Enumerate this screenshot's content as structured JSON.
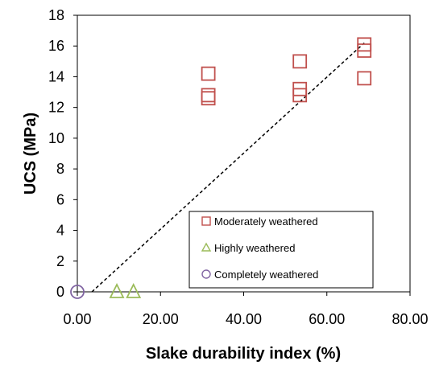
{
  "chart_data": {
    "type": "scatter",
    "xlabel": "Slake durability index (%)",
    "ylabel": "UCS (MPa)",
    "xlim": [
      0,
      80
    ],
    "ylim": [
      0,
      18
    ],
    "x_ticks": [
      "0.00",
      "20.00",
      "40.00",
      "60.00",
      "80.00"
    ],
    "y_ticks": [
      "0",
      "2",
      "4",
      "6",
      "8",
      "10",
      "12",
      "14",
      "16",
      "18"
    ],
    "grid": false,
    "legend_position": "bottom-right",
    "series": [
      {
        "name": "Moderately weathered",
        "marker": "square",
        "color": "#c0504d",
        "points": [
          [
            31.5,
            14.2
          ],
          [
            31.5,
            12.8
          ],
          [
            31.5,
            12.6
          ],
          [
            53.5,
            15.0
          ],
          [
            53.5,
            13.2
          ],
          [
            53.5,
            12.8
          ],
          [
            69.0,
            16.1
          ],
          [
            69.0,
            15.7
          ],
          [
            69.0,
            13.9
          ]
        ]
      },
      {
        "name": "Highly weathered",
        "marker": "triangle",
        "color": "#9bbb59",
        "points": [
          [
            9.5,
            0.0
          ],
          [
            13.5,
            0.0
          ]
        ]
      },
      {
        "name": "Completely weathered",
        "marker": "circle",
        "color": "#8064a2",
        "points": [
          [
            0.0,
            0.0
          ]
        ]
      }
    ],
    "trendline": {
      "style": "dashed",
      "color": "#000000",
      "points": [
        [
          3.5,
          0.0
        ],
        [
          69.0,
          16.2
        ]
      ]
    }
  }
}
